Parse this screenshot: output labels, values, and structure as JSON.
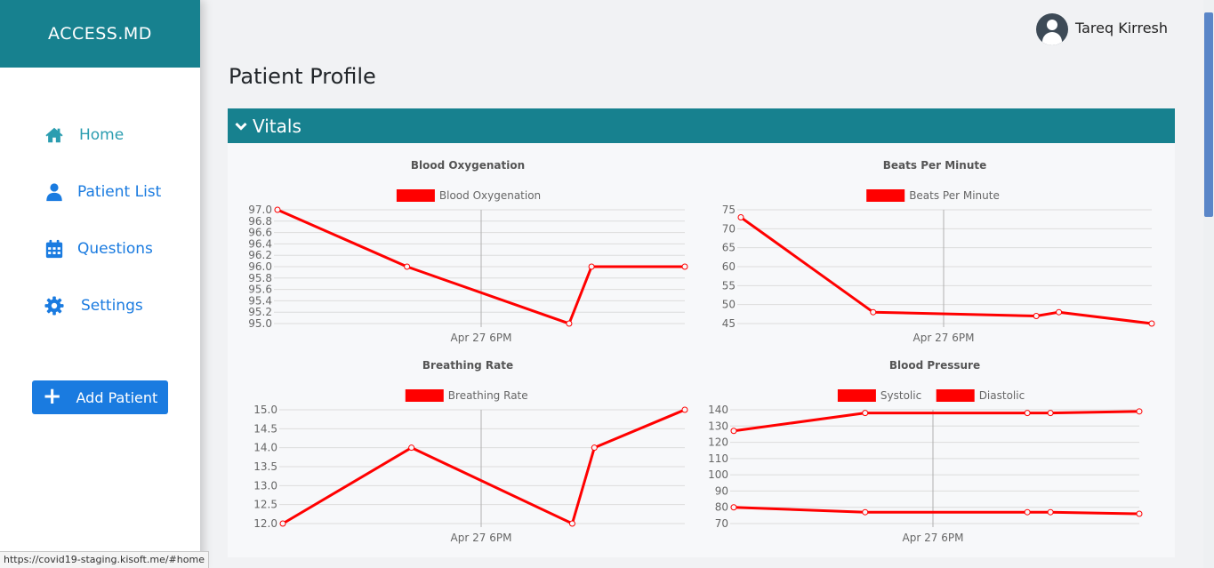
{
  "brand": "ACCESS.MD",
  "sidebar": {
    "items": [
      {
        "label": "Home",
        "icon": "home-icon"
      },
      {
        "label": "Patient List",
        "icon": "user-icon"
      },
      {
        "label": "Questions",
        "icon": "calendar-icon"
      },
      {
        "label": "Settings",
        "icon": "gear-icon"
      }
    ],
    "add_patient_label": "Add Patient"
  },
  "user": {
    "name": "Tareq Kirresh"
  },
  "page_title": "Patient Profile",
  "vitals_label": "Vitals",
  "status_url": "https://covid19-staging.kisoft.me/#home",
  "colors": {
    "brand": "#17818f",
    "primary": "#1a7be0",
    "series": "#ff0000"
  },
  "chart_data": [
    {
      "type": "line",
      "title": "Blood Oxygenation",
      "x_ticks": [
        "Apr 27 6PM"
      ],
      "ylim": [
        95.0,
        97.0
      ],
      "y_ticks": [
        "97.0",
        "96.8",
        "96.6",
        "96.4",
        "96.2",
        "96.0",
        "95.8",
        "95.6",
        "95.4",
        "95.2",
        "95.0"
      ],
      "series": [
        {
          "name": "Blood Oxygenation",
          "values": [
            97.0,
            96.0,
            95.0,
            96.0,
            96.0
          ]
        }
      ]
    },
    {
      "type": "line",
      "title": "Beats Per Minute",
      "x_ticks": [
        "Apr 27 6PM"
      ],
      "ylim": [
        45,
        75
      ],
      "y_ticks": [
        "75",
        "70",
        "65",
        "60",
        "55",
        "50",
        "45"
      ],
      "series": [
        {
          "name": "Beats Per Minute",
          "values": [
            73,
            48,
            47,
            48,
            45
          ]
        }
      ]
    },
    {
      "type": "line",
      "title": "Breathing Rate",
      "x_ticks": [
        "Apr 27 6PM"
      ],
      "ylim": [
        12.0,
        15.0
      ],
      "y_ticks": [
        "15.0",
        "14.5",
        "14.0",
        "13.5",
        "13.0",
        "12.5",
        "12.0"
      ],
      "series": [
        {
          "name": "Breathing Rate",
          "values": [
            12.0,
            14.0,
            12.0,
            14.0,
            15.0
          ]
        }
      ]
    },
    {
      "type": "line",
      "title": "Blood Pressure",
      "x_ticks": [
        "Apr 27 6PM"
      ],
      "ylim": [
        70,
        140
      ],
      "y_ticks": [
        "140",
        "130",
        "120",
        "110",
        "100",
        "90",
        "80",
        "70"
      ],
      "series": [
        {
          "name": "Systolic",
          "values": [
            127,
            138,
            138,
            138,
            139
          ]
        },
        {
          "name": "Diastolic",
          "values": [
            80,
            77,
            77,
            77,
            76
          ]
        }
      ]
    }
  ]
}
